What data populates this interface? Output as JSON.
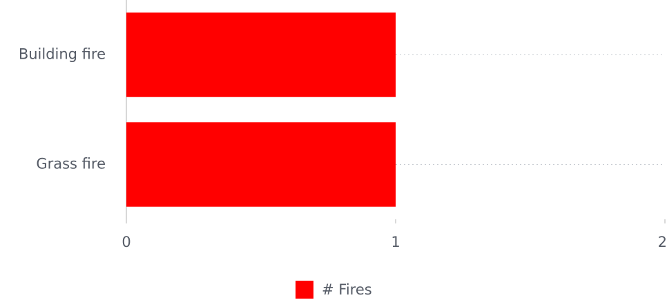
{
  "chart_data": {
    "type": "bar",
    "orientation": "horizontal",
    "categories": [
      "Building fire",
      "Grass fire"
    ],
    "series": [
      {
        "name": "# Fires",
        "color": "#ff0000",
        "values": [
          1,
          1
        ]
      }
    ],
    "xlim": [
      0,
      2
    ],
    "xticks": [
      0,
      1,
      2
    ],
    "grid": true,
    "legend": "bottom"
  }
}
